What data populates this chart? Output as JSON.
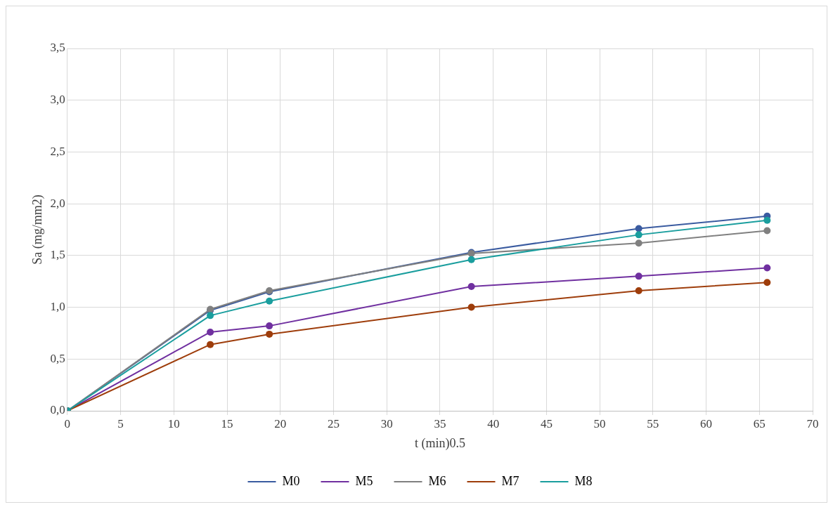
{
  "chart_data": {
    "type": "line",
    "xlabel": "t (min)0.5",
    "ylabel": "Sa (mg/mm2)",
    "x": [
      0,
      13.42,
      18.97,
      37.95,
      53.67,
      65.73
    ],
    "series": [
      {
        "name": "M0",
        "color": "#3a5ba0",
        "values": [
          0,
          0.97,
          1.15,
          1.53,
          1.76,
          1.88
        ]
      },
      {
        "name": "M5",
        "color": "#7030a0",
        "values": [
          0,
          0.76,
          0.82,
          1.2,
          1.3,
          1.38
        ]
      },
      {
        "name": "M6",
        "color": "#808080",
        "values": [
          0,
          0.98,
          1.16,
          1.52,
          1.62,
          1.74
        ]
      },
      {
        "name": "M7",
        "color": "#9e3d0b",
        "values": [
          0,
          0.64,
          0.74,
          1.0,
          1.16,
          1.24
        ]
      },
      {
        "name": "M8",
        "color": "#1a9e9e",
        "values": [
          0,
          0.92,
          1.06,
          1.46,
          1.7,
          1.84
        ]
      }
    ],
    "xlim": [
      0,
      70
    ],
    "xticks": [
      0,
      5,
      10,
      15,
      20,
      25,
      30,
      35,
      40,
      45,
      50,
      55,
      60,
      65,
      70
    ],
    "ylim": [
      0,
      3.5
    ],
    "yticks": [
      {
        "value": 0,
        "label": "0,0"
      },
      {
        "value": 0.5,
        "label": "0,5"
      },
      {
        "value": 1,
        "label": "1,0"
      },
      {
        "value": 1.5,
        "label": "1,5"
      },
      {
        "value": 2,
        "label": "2,0"
      },
      {
        "value": 2.5,
        "label": "2,5"
      },
      {
        "value": 3,
        "label": "3,0"
      },
      {
        "value": 3.5,
        "label": "3,5"
      }
    ],
    "grid": true,
    "legend": "bottom",
    "marker": "circle",
    "line_style": "solid"
  }
}
